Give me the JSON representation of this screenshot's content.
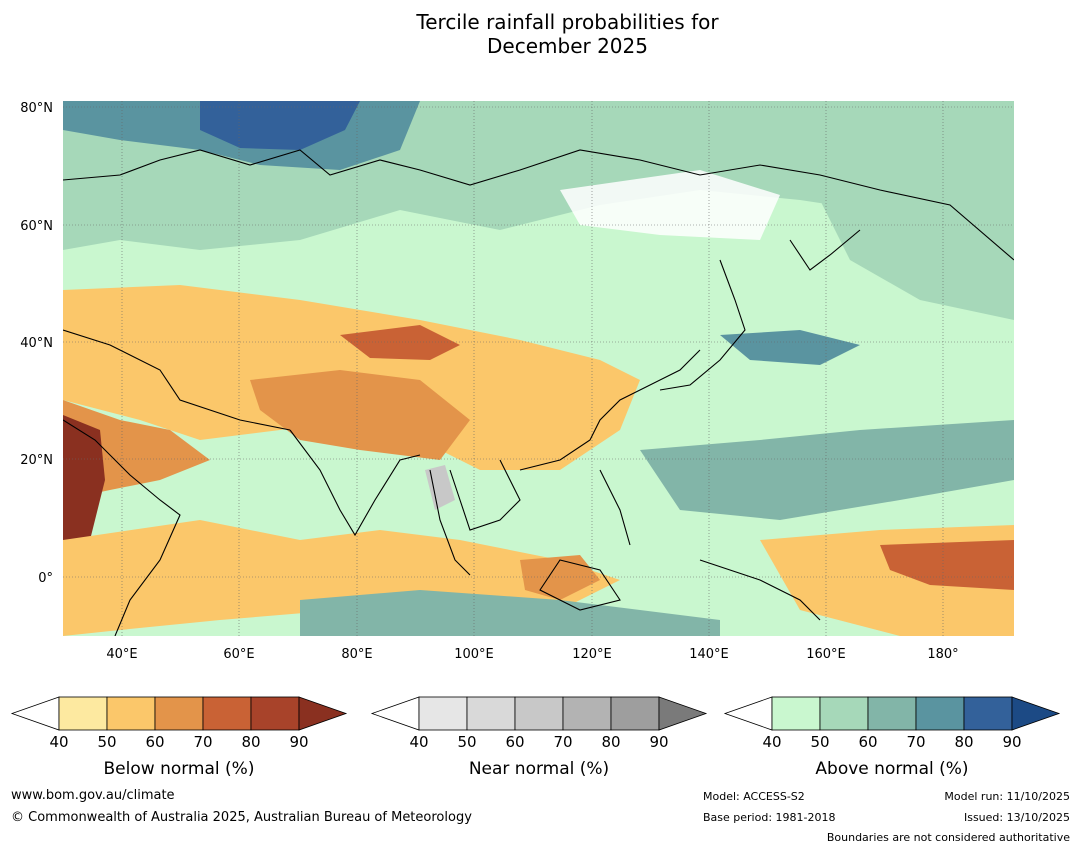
{
  "title": {
    "line1": "Tercile rainfall probabilities for",
    "line2": "December 2025"
  },
  "map": {
    "lat_labels": [
      "80°N",
      "60°N",
      "40°N",
      "20°N",
      "0°"
    ],
    "lon_labels": [
      "40°E",
      "60°E",
      "80°E",
      "100°E",
      "120°E",
      "140°E",
      "160°E",
      "180°"
    ]
  },
  "colorbars": [
    {
      "label": "Below normal (%)",
      "ticks": [
        "40",
        "50",
        "60",
        "70",
        "80",
        "90"
      ],
      "colors": [
        "#ffffff",
        "#fde9a0",
        "#fbc76a",
        "#e3944a",
        "#c96235",
        "#a8432a",
        "#8a3020"
      ]
    },
    {
      "label": "Near normal (%)",
      "ticks": [
        "40",
        "50",
        "60",
        "70",
        "80",
        "90"
      ],
      "colors": [
        "#ffffff",
        "#e6e6e6",
        "#d9d9d9",
        "#c8c8c8",
        "#b3b3b3",
        "#9e9e9e",
        "#7a7a7a"
      ]
    },
    {
      "label": "Above normal (%)",
      "ticks": [
        "40",
        "50",
        "60",
        "70",
        "80",
        "90"
      ],
      "colors": [
        "#ffffff",
        "#c9f7cf",
        "#a6d8b9",
        "#82b5a8",
        "#5a94a0",
        "#33619a",
        "#1c4a85"
      ]
    }
  ],
  "footer": {
    "url": "www.bom.gov.au/climate",
    "copyright": "© Commonwealth of Australia 2025, Australian Bureau of Meteorology",
    "model": "Model: ACCESS-S2",
    "base_period": "Base period: 1981-2018",
    "model_run": "Model run: 11/10/2025",
    "issued": "Issued: 13/10/2025",
    "disclaimer": "Boundaries are not considered authoritative"
  }
}
